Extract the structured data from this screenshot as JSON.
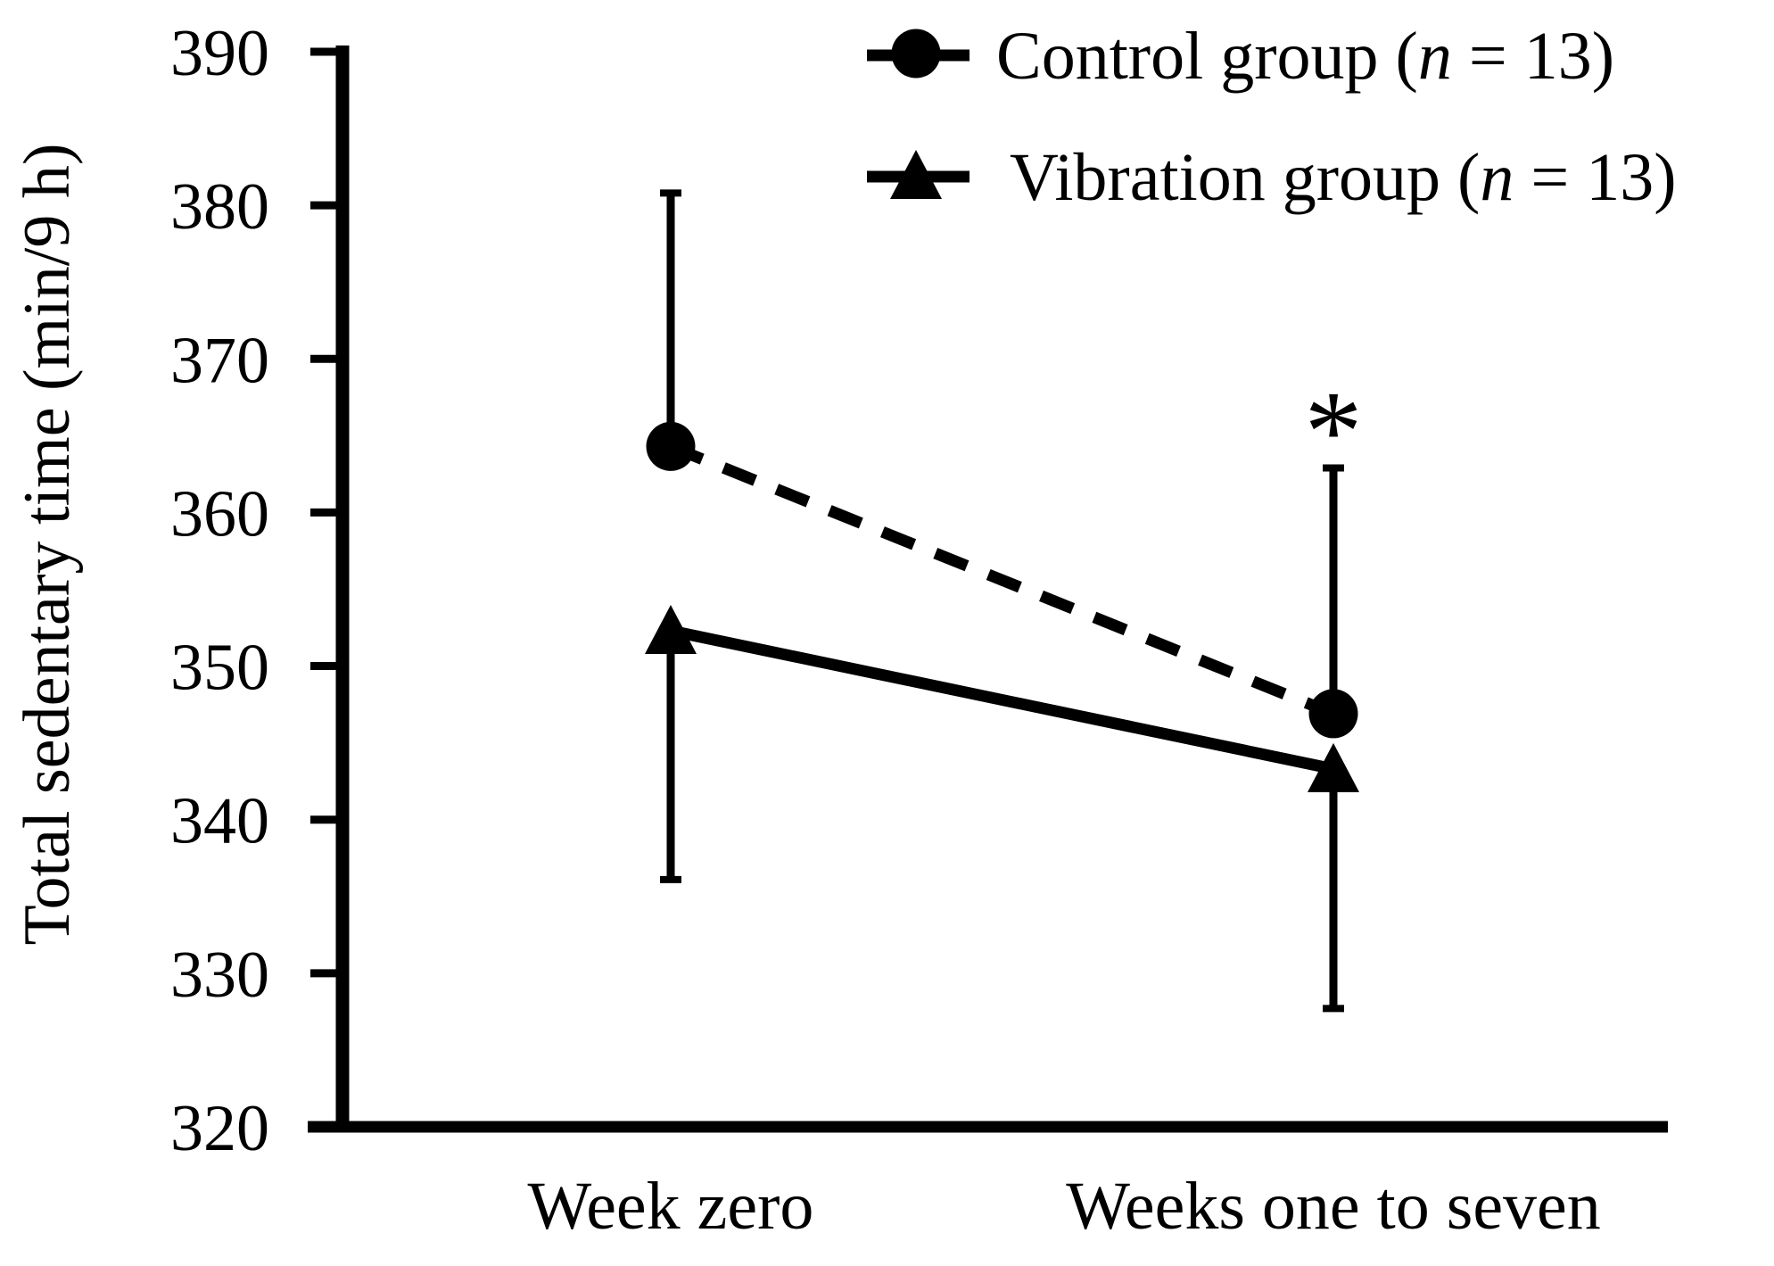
{
  "chart_data": {
    "type": "line",
    "title": "",
    "ylabel": "Total sedentary time (min/9 h)",
    "xlabel": "",
    "categories": [
      "Week zero",
      "Weeks one to seven"
    ],
    "ylim": [
      320,
      390
    ],
    "ytick_interval": 10,
    "ytick_labels": [
      "390",
      "380",
      "370",
      "360",
      "350",
      "340",
      "330",
      "320"
    ],
    "grid": false,
    "legend_position": "top-center",
    "series": [
      {
        "name": "Control group (n = 13)",
        "n": 13,
        "marker": "filled-circle",
        "line_style": "dashed",
        "error_direction": "up",
        "values": [
          364.3,
          346.9
        ],
        "error": [
          16.5,
          16.0
        ]
      },
      {
        "name": "Vibration group (n = 13)",
        "n": 13,
        "marker": "filled-triangle-up",
        "line_style": "solid",
        "error_direction": "down",
        "values": [
          352.3,
          343.3
        ],
        "error": [
          16.2,
          15.6
        ]
      }
    ],
    "annotation": {
      "text": "*",
      "location": "above upper error bar at Weeks one to seven"
    }
  },
  "legend": {
    "control": {
      "prefix": "Control group (",
      "n": "n",
      "suffix": " = 13)"
    },
    "vibration": {
      "prefix": "Vibration group (",
      "n": "n",
      "suffix": " = 13)"
    }
  },
  "colors": {
    "foreground": "#000000",
    "background": "#ffffff"
  }
}
